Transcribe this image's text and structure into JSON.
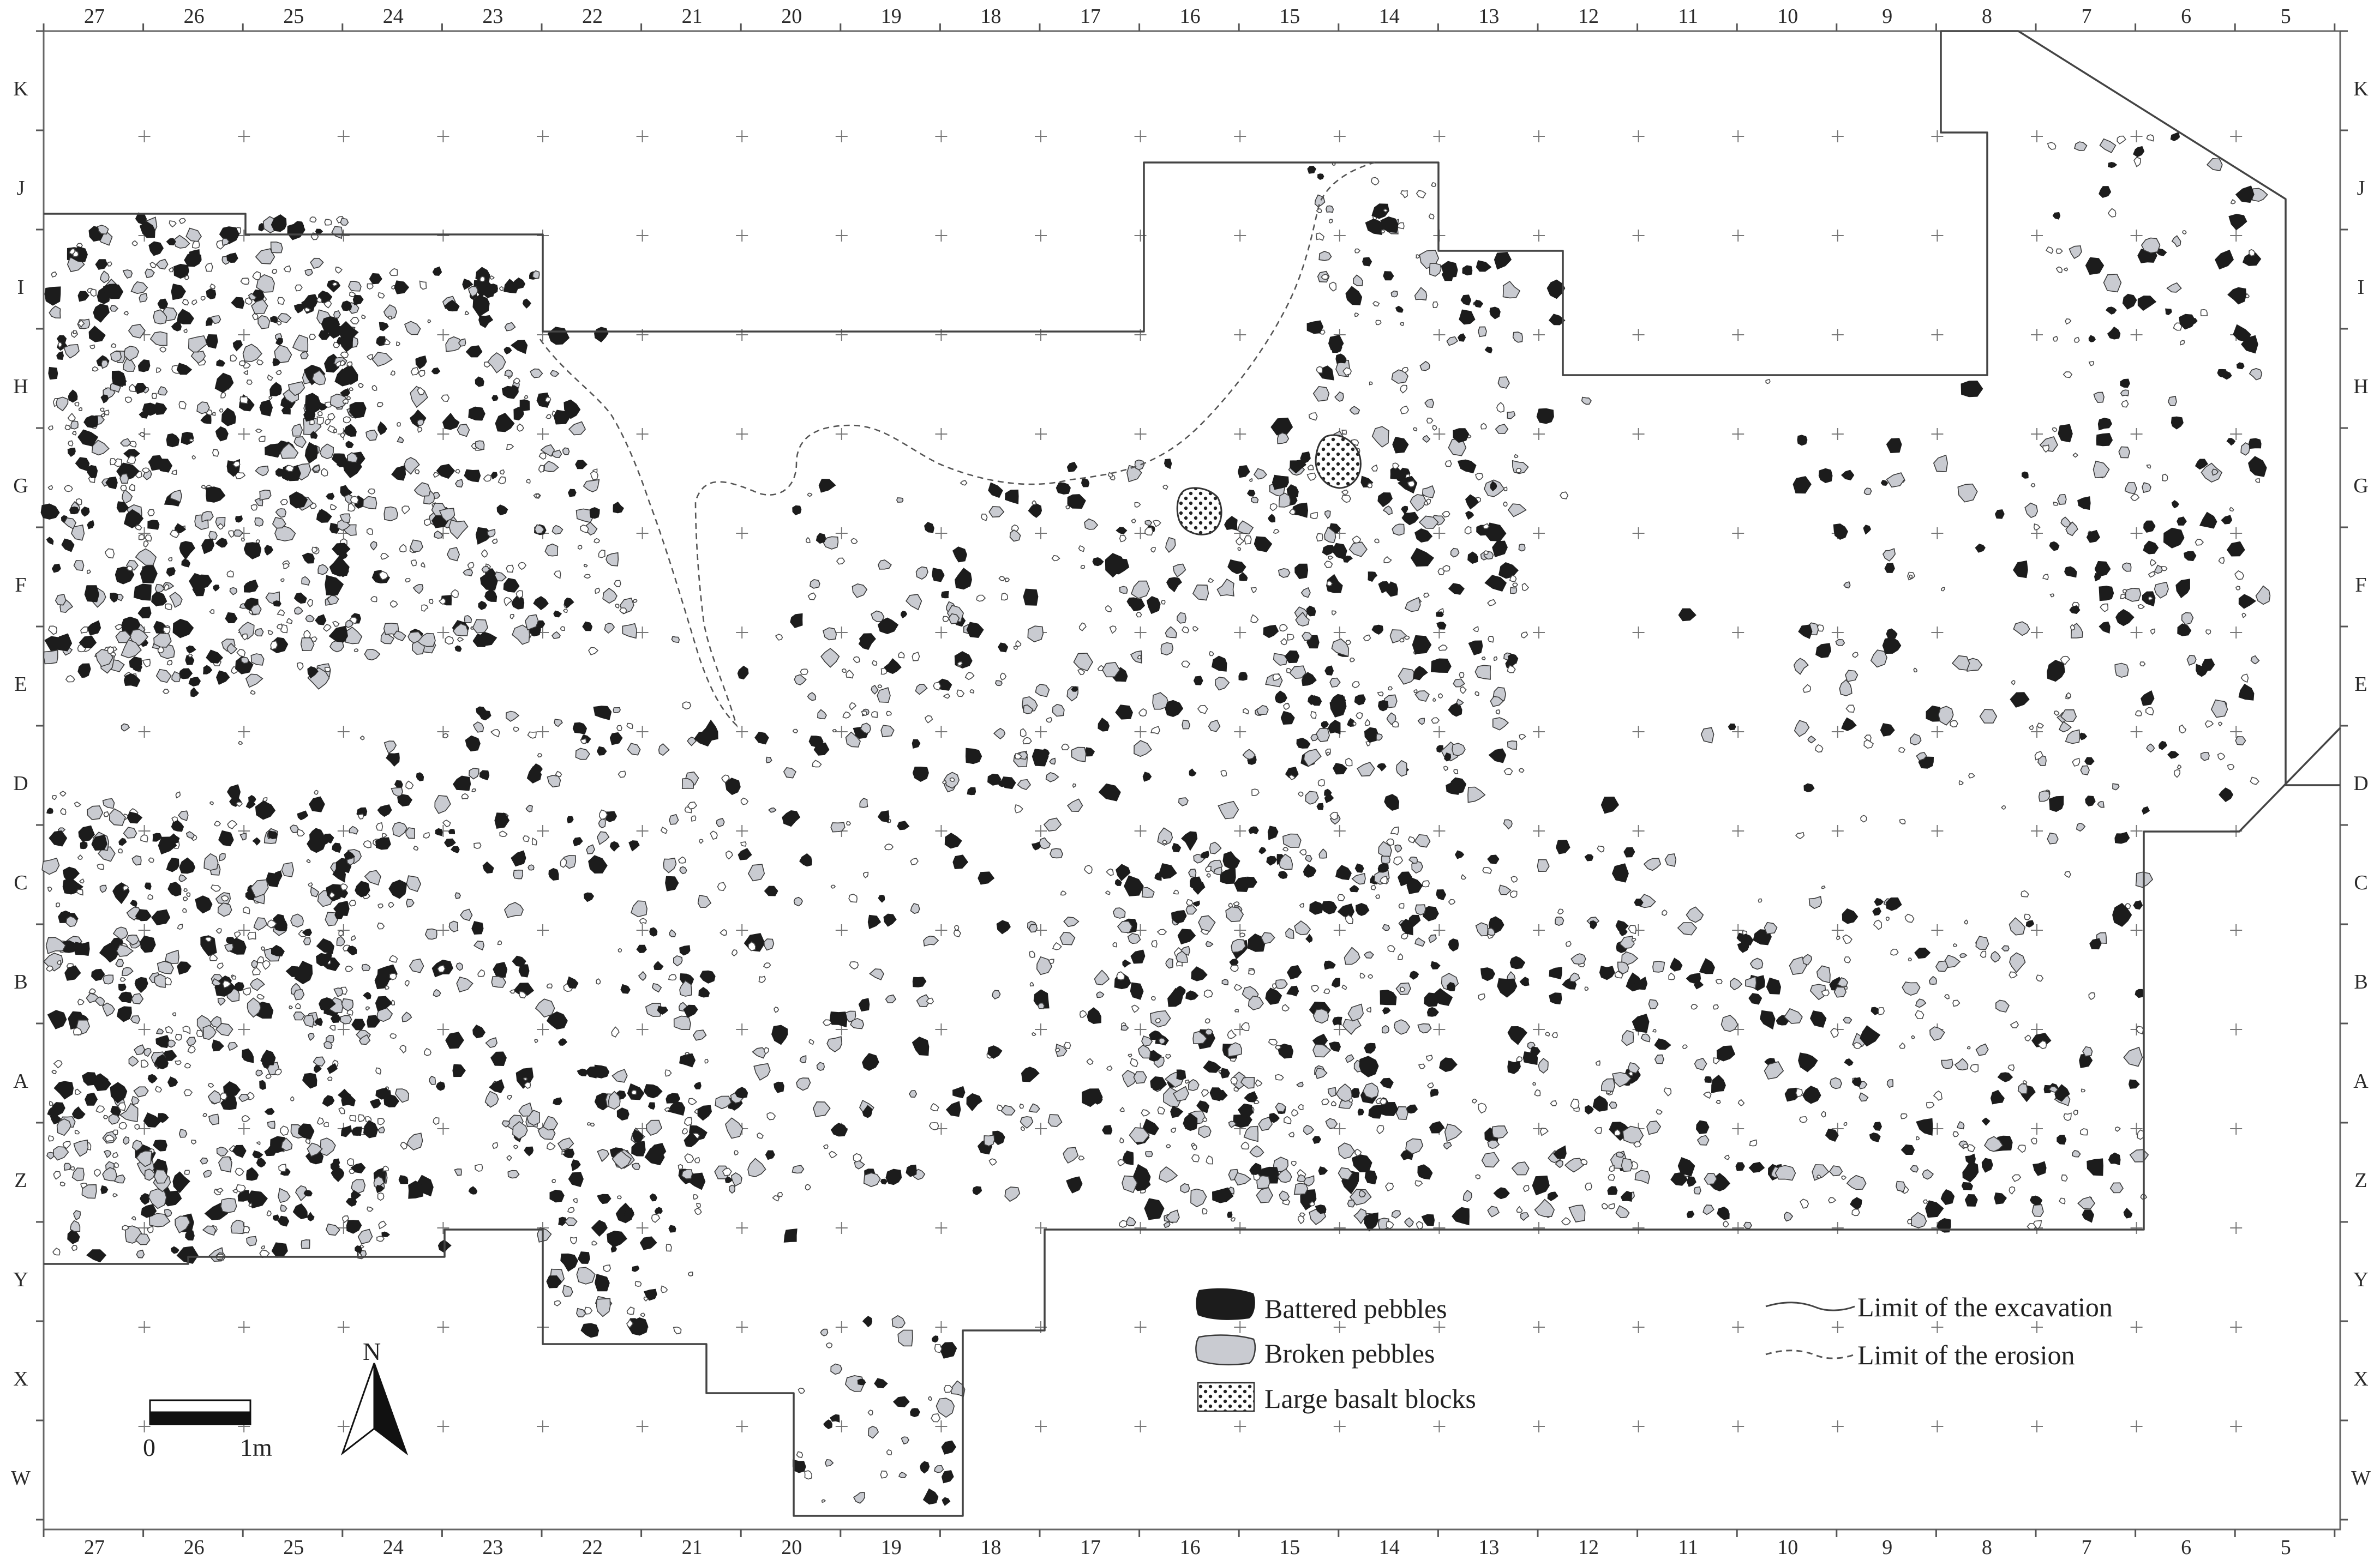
{
  "columns": [
    "27",
    "26",
    "25",
    "24",
    "23",
    "22",
    "21",
    "20",
    "19",
    "18",
    "17",
    "16",
    "15",
    "14",
    "13",
    "12",
    "11",
    "10",
    "9",
    "8",
    "7",
    "6",
    "5"
  ],
  "rows": [
    "K",
    "J",
    "I",
    "H",
    "G",
    "F",
    "E",
    "D",
    "C",
    "B",
    "A",
    "Z",
    "Y",
    "X",
    "W"
  ],
  "legend": {
    "battered": "Battered pebbles",
    "broken": "Broken pebbles",
    "basalt": "Large basalt blocks",
    "excavation": "Limit of the excavation",
    "erosion": "Limit of the erosion"
  },
  "scale": {
    "zero": "0",
    "unit": "1m"
  },
  "north": "N",
  "colors": {
    "battered": "#1c1c1c",
    "broken": "#c9cbd1",
    "outline": "#3a3a3a"
  }
}
